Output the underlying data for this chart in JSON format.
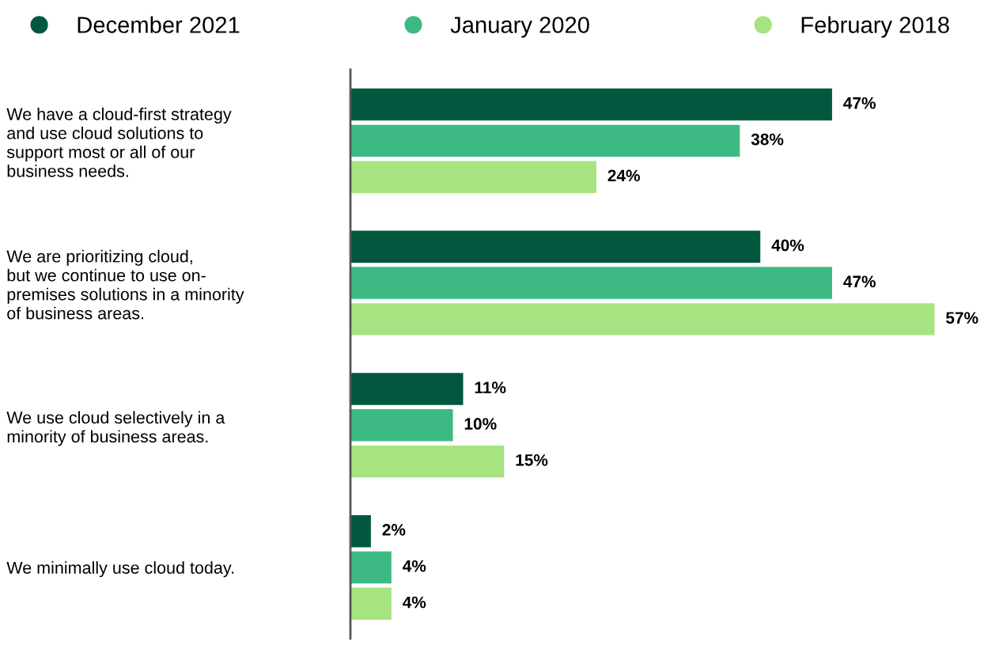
{
  "chart_data": {
    "type": "bar",
    "orientation": "horizontal",
    "categories": [
      "We have a cloud-first strategy\nand use cloud solutions to\nsupport most or all of our\nbusiness needs.",
      "We are prioritizing cloud,\nbut we continue to use on-\npremises solutions in a minority\nof business areas.",
      "We use cloud selectively in a\nminority of business areas.",
      "We minimally use cloud today."
    ],
    "series": [
      {
        "name": "December 2021",
        "color": "#03573f",
        "values": [
          47,
          40,
          11,
          2
        ],
        "value_labels": [
          "47%",
          "40%",
          "11%",
          "2%"
        ]
      },
      {
        "name": "January 2020",
        "color": "#3dba84",
        "values": [
          38,
          47,
          10,
          4
        ],
        "value_labels": [
          "38%",
          "47%",
          "10%",
          "4%"
        ]
      },
      {
        "name": "February 2018",
        "color": "#a6e481",
        "values": [
          24,
          57,
          15,
          4
        ],
        "value_labels": [
          "24%",
          "57%",
          "15%",
          "4%"
        ]
      }
    ],
    "legend": "top",
    "grid": false,
    "tick_labels": "y"
  }
}
